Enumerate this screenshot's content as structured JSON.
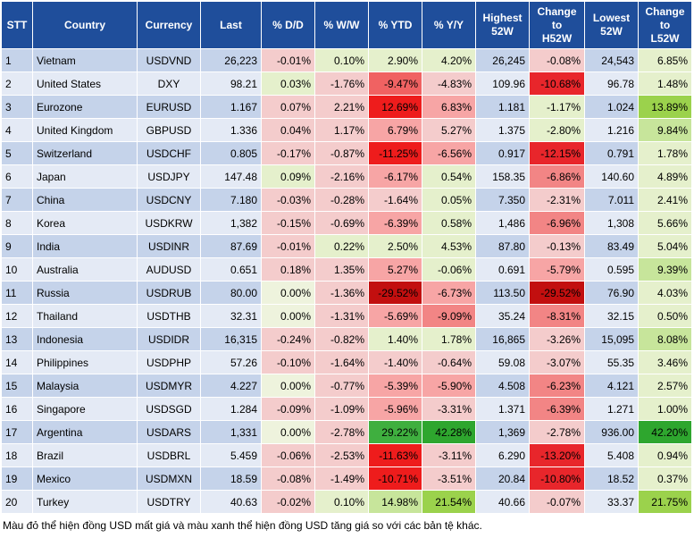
{
  "headers": {
    "stt": "STT",
    "country": "Country",
    "currency": "Currency",
    "last": "Last",
    "dd": "% D/D",
    "ww": "% W/W",
    "ytd": "% YTD",
    "yy": "% Y/Y",
    "high52": [
      "Highest",
      "52W"
    ],
    "chg_h52": [
      "Change",
      "to",
      "H52W"
    ],
    "low52": [
      "Lowest",
      "52W"
    ],
    "chg_l52": [
      "Change",
      "to",
      "L52W"
    ]
  },
  "rows": [
    {
      "stt": "1",
      "country": "Vietnam",
      "currency": "USDVND",
      "last": "26,223",
      "dd": "-0.01%",
      "ww": "0.10%",
      "ytd": "2.90%",
      "yy": "4.20%",
      "high": "26,245",
      "chg_h": "-0.08%",
      "low": "24,543",
      "chg_l": "6.85%",
      "colors": {
        "dd": "#f4cccc",
        "ww": "#e5f0cc",
        "ytd": "#e5f0cc",
        "yy": "#e5f0cc",
        "chg_h": "#f4cccc",
        "chg_l": "#e5f0cc"
      }
    },
    {
      "stt": "2",
      "country": "United States",
      "currency": "DXY",
      "last": "98.21",
      "dd": "0.03%",
      "ww": "-1.76%",
      "ytd": "-9.47%",
      "yy": "-4.83%",
      "high": "109.96",
      "chg_h": "-10.68%",
      "low": "96.78",
      "chg_l": "1.48%",
      "colors": {
        "dd": "#e5f0cc",
        "ww": "#f4cccc",
        "ytd": "#f06262",
        "yy": "#f4cccc",
        "chg_h": "#e8262b",
        "chg_l": "#e5f0cc"
      }
    },
    {
      "stt": "3",
      "country": "Eurozone",
      "currency": "EURUSD",
      "last": "1.167",
      "dd": "0.07%",
      "ww": "2.21%",
      "ytd": "12.69%",
      "yy": "6.83%",
      "high": "1.181",
      "chg_h": "-1.17%",
      "low": "1.024",
      "chg_l": "13.89%",
      "colors": {
        "dd": "#f4cccc",
        "ww": "#f4cccc",
        "ytd": "#ee1c1c",
        "yy": "#f7a5a5",
        "chg_h": "#e5f0cc",
        "chg_l": "#9bd24c"
      }
    },
    {
      "stt": "4",
      "country": "United Kingdom",
      "currency": "GBPUSD",
      "last": "1.336",
      "dd": "0.04%",
      "ww": "1.17%",
      "ytd": "6.79%",
      "yy": "5.27%",
      "high": "1.375",
      "chg_h": "-2.80%",
      "low": "1.216",
      "chg_l": "9.84%",
      "colors": {
        "dd": "#f4cccc",
        "ww": "#f4cccc",
        "ytd": "#f7a5a5",
        "yy": "#f4cccc",
        "chg_h": "#e5f0cc",
        "chg_l": "#c7e59b"
      }
    },
    {
      "stt": "5",
      "country": "Switzerland",
      "currency": "USDCHF",
      "last": "0.805",
      "dd": "-0.17%",
      "ww": "-0.87%",
      "ytd": "-11.25%",
      "yy": "-6.56%",
      "high": "0.917",
      "chg_h": "-12.15%",
      "low": "0.791",
      "chg_l": "1.78%",
      "colors": {
        "dd": "#f4cccc",
        "ww": "#f4cccc",
        "ytd": "#ee1c1c",
        "yy": "#f7a5a5",
        "chg_h": "#e8262b",
        "chg_l": "#e5f0cc"
      }
    },
    {
      "stt": "6",
      "country": "Japan",
      "currency": "USDJPY",
      "last": "147.48",
      "dd": "0.09%",
      "ww": "-2.16%",
      "ytd": "-6.17%",
      "yy": "0.54%",
      "high": "158.35",
      "chg_h": "-6.86%",
      "low": "140.60",
      "chg_l": "4.89%",
      "colors": {
        "dd": "#e5f0cc",
        "ww": "#f4cccc",
        "ytd": "#f7a5a5",
        "yy": "#e5f0cc",
        "chg_h": "#f28585",
        "chg_l": "#e5f0cc"
      }
    },
    {
      "stt": "7",
      "country": "China",
      "currency": "USDCNY",
      "last": "7.180",
      "dd": "-0.03%",
      "ww": "-0.28%",
      "ytd": "-1.64%",
      "yy": "0.05%",
      "high": "7.350",
      "chg_h": "-2.31%",
      "low": "7.011",
      "chg_l": "2.41%",
      "colors": {
        "dd": "#f4cccc",
        "ww": "#f4cccc",
        "ytd": "#f4cccc",
        "yy": "#e5f0cc",
        "chg_h": "#f4cccc",
        "chg_l": "#e5f0cc"
      }
    },
    {
      "stt": "8",
      "country": "Korea",
      "currency": "USDKRW",
      "last": "1,382",
      "dd": "-0.15%",
      "ww": "-0.69%",
      "ytd": "-6.39%",
      "yy": "0.58%",
      "high": "1,486",
      "chg_h": "-6.96%",
      "low": "1,308",
      "chg_l": "5.66%",
      "colors": {
        "dd": "#f4cccc",
        "ww": "#f4cccc",
        "ytd": "#f7a5a5",
        "yy": "#e5f0cc",
        "chg_h": "#f28585",
        "chg_l": "#e5f0cc"
      }
    },
    {
      "stt": "9",
      "country": "India",
      "currency": "USDINR",
      "last": "87.69",
      "dd": "-0.01%",
      "ww": "0.22%",
      "ytd": "2.50%",
      "yy": "4.53%",
      "high": "87.80",
      "chg_h": "-0.13%",
      "low": "83.49",
      "chg_l": "5.04%",
      "colors": {
        "dd": "#f4cccc",
        "ww": "#e5f0cc",
        "ytd": "#e5f0cc",
        "yy": "#e5f0cc",
        "chg_h": "#f4cccc",
        "chg_l": "#e5f0cc"
      }
    },
    {
      "stt": "10",
      "country": "Australia",
      "currency": "AUDUSD",
      "last": "0.651",
      "dd": "0.18%",
      "ww": "1.35%",
      "ytd": "5.27%",
      "yy": "-0.06%",
      "high": "0.691",
      "chg_h": "-5.79%",
      "low": "0.595",
      "chg_l": "9.39%",
      "colors": {
        "dd": "#f4cccc",
        "ww": "#f4cccc",
        "ytd": "#f7a5a5",
        "yy": "#e5f0cc",
        "chg_h": "#f7a5a5",
        "chg_l": "#c7e59b"
      }
    },
    {
      "stt": "11",
      "country": "Russia",
      "currency": "USDRUB",
      "last": "80.00",
      "dd": "0.00%",
      "ww": "-1.36%",
      "ytd": "-29.52%",
      "yy": "-6.73%",
      "high": "113.50",
      "chg_h": "-29.52%",
      "low": "76.90",
      "chg_l": "4.03%",
      "colors": {
        "dd": "#eef3dd",
        "ww": "#f4cccc",
        "ytd": "#c20f0f",
        "yy": "#f7a5a5",
        "chg_h": "#c20f0f",
        "chg_l": "#e5f0cc"
      }
    },
    {
      "stt": "12",
      "country": "Thailand",
      "currency": "USDTHB",
      "last": "32.31",
      "dd": "0.00%",
      "ww": "-1.31%",
      "ytd": "-5.69%",
      "yy": "-9.09%",
      "high": "35.24",
      "chg_h": "-8.31%",
      "low": "32.15",
      "chg_l": "0.50%",
      "colors": {
        "dd": "#eef3dd",
        "ww": "#f4cccc",
        "ytd": "#f7a5a5",
        "yy": "#f28585",
        "chg_h": "#f28585",
        "chg_l": "#e5f0cc"
      }
    },
    {
      "stt": "13",
      "country": "Indonesia",
      "currency": "USDIDR",
      "last": "16,315",
      "dd": "-0.24%",
      "ww": "-0.82%",
      "ytd": "1.40%",
      "yy": "1.78%",
      "high": "16,865",
      "chg_h": "-3.26%",
      "low": "15,095",
      "chg_l": "8.08%",
      "colors": {
        "dd": "#f4cccc",
        "ww": "#f4cccc",
        "ytd": "#e5f0cc",
        "yy": "#e5f0cc",
        "chg_h": "#f4cccc",
        "chg_l": "#c7e59b"
      }
    },
    {
      "stt": "14",
      "country": "Philippines",
      "currency": "USDPHP",
      "last": "57.26",
      "dd": "-0.10%",
      "ww": "-1.64%",
      "ytd": "-1.40%",
      "yy": "-0.64%",
      "high": "59.08",
      "chg_h": "-3.07%",
      "low": "55.35",
      "chg_l": "3.46%",
      "colors": {
        "dd": "#f4cccc",
        "ww": "#f4cccc",
        "ytd": "#f4cccc",
        "yy": "#f4cccc",
        "chg_h": "#f4cccc",
        "chg_l": "#e5f0cc"
      }
    },
    {
      "stt": "15",
      "country": "Malaysia",
      "currency": "USDMYR",
      "last": "4.227",
      "dd": "0.00%",
      "ww": "-0.77%",
      "ytd": "-5.39%",
      "yy": "-5.90%",
      "high": "4.508",
      "chg_h": "-6.23%",
      "low": "4.121",
      "chg_l": "2.57%",
      "colors": {
        "dd": "#eef3dd",
        "ww": "#f4cccc",
        "ytd": "#f7a5a5",
        "yy": "#f7a5a5",
        "chg_h": "#f28585",
        "chg_l": "#e5f0cc"
      }
    },
    {
      "stt": "16",
      "country": "Singapore",
      "currency": "USDSGD",
      "last": "1.284",
      "dd": "-0.09%",
      "ww": "-1.09%",
      "ytd": "-5.96%",
      "yy": "-3.31%",
      "high": "1.371",
      "chg_h": "-6.39%",
      "low": "1.271",
      "chg_l": "1.00%",
      "colors": {
        "dd": "#f4cccc",
        "ww": "#f4cccc",
        "ytd": "#f7a5a5",
        "yy": "#f4cccc",
        "chg_h": "#f28585",
        "chg_l": "#e5f0cc"
      }
    },
    {
      "stt": "17",
      "country": "Argentina",
      "currency": "USDARS",
      "last": "1,331",
      "dd": "0.00%",
      "ww": "-2.78%",
      "ytd": "29.22%",
      "yy": "42.28%",
      "high": "1,369",
      "chg_h": "-2.78%",
      "low": "936.00",
      "chg_l": "42.20%",
      "colors": {
        "dd": "#eef3dd",
        "ww": "#f4cccc",
        "ytd": "#3faf3f",
        "yy": "#2ea62e",
        "chg_h": "#f4cccc",
        "chg_l": "#2ea62e"
      }
    },
    {
      "stt": "18",
      "country": "Brazil",
      "currency": "USDBRL",
      "last": "5.459",
      "dd": "-0.06%",
      "ww": "-2.53%",
      "ytd": "-11.63%",
      "yy": "-3.11%",
      "high": "6.290",
      "chg_h": "-13.20%",
      "low": "5.408",
      "chg_l": "0.94%",
      "colors": {
        "dd": "#f4cccc",
        "ww": "#f4cccc",
        "ytd": "#ee1c1c",
        "yy": "#f4cccc",
        "chg_h": "#e8262b",
        "chg_l": "#e5f0cc"
      }
    },
    {
      "stt": "19",
      "country": "Mexico",
      "currency": "USDMXN",
      "last": "18.59",
      "dd": "-0.08%",
      "ww": "-1.49%",
      "ytd": "-10.71%",
      "yy": "-3.51%",
      "high": "20.84",
      "chg_h": "-10.80%",
      "low": "18.52",
      "chg_l": "0.37%",
      "colors": {
        "dd": "#f4cccc",
        "ww": "#f4cccc",
        "ytd": "#ee1c1c",
        "yy": "#f4cccc",
        "chg_h": "#e8262b",
        "chg_l": "#e5f0cc"
      }
    },
    {
      "stt": "20",
      "country": "Turkey",
      "currency": "USDTRY",
      "last": "40.63",
      "dd": "-0.02%",
      "ww": "0.10%",
      "ytd": "14.98%",
      "yy": "21.54%",
      "high": "40.66",
      "chg_h": "-0.07%",
      "low": "33.37",
      "chg_l": "21.75%",
      "colors": {
        "dd": "#f4cccc",
        "ww": "#e5f0cc",
        "ytd": "#c7e59b",
        "yy": "#9bd24c",
        "chg_h": "#f4cccc",
        "chg_l": "#9bd24c"
      }
    }
  ],
  "note": "Màu đỏ thể hiện đồng USD mất giá và màu xanh thể hiện đồng USD tăng giá so với các bản tệ khác.",
  "colors": {
    "header_bg": "#1f4e9b",
    "row_odd": "#c5d3ea",
    "row_even": "#e4eaf5"
  }
}
